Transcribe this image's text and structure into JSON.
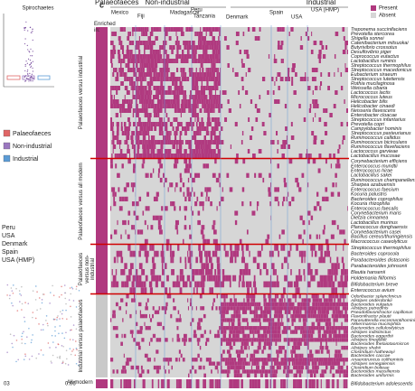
{
  "panel_b": {
    "title": "Spirochaetes",
    "legend": [
      "Palaeofaeces",
      "Non-industrial",
      "Industrial"
    ],
    "countries": [
      "Peru",
      "USA",
      "Denmark",
      "Spain",
      "USA (HMP)"
    ],
    "x_tick_labels": [
      "03",
      "0.06"
    ]
  },
  "panel_c": {
    "label": "c",
    "headers": [
      "Palaeofaeces",
      "Non-industrial",
      "Industrial"
    ],
    "countries": [
      "Mexico",
      "Fiji",
      "Madagascar",
      "Peru",
      "Tanzania",
      "Denmark",
      "Spain",
      "USA",
      "USA (HMP)"
    ],
    "enriched_label": "Enriched in:",
    "legend": [
      "Present",
      "Absent"
    ],
    "groups": [
      {
        "name": "Palaeofaeces versus industrial",
        "species": [
          "Treponema succinifaciens",
          "Prevotella stercorea",
          "Shigella sonnei",
          "Catenibacterium mitsuokai",
          "Butyrivibrio crossotus",
          "Desulfovibrio piger",
          "Coprococcus eutactus",
          "Lactobacillus ruminis",
          "Streptococcus thermophilus",
          "Streptococcus macedonicus",
          "Eubacterium siraeum",
          "Streptococcus lutetiensis",
          "Rothia mucilaginosa",
          "Weissella cibaria",
          "Lactococcus lactis",
          "Micrococcus luteus",
          "Helicobacter bilis",
          "Helicobacter cinaedi",
          "Neisseria flavescens",
          "Enterobacter cloacae",
          "Streptococcus infantarius",
          "Prevotella copri",
          "Campylobacter hominis",
          "Streptococcus pasteurianus",
          "Ruminococcus callidus",
          "Ruminococcus bicirculans",
          "Ruminococcus flavefaciens",
          "Lactococcus garvieae",
          "Lactobacillus mucosae"
        ]
      },
      {
        "name": "Palaeofaeces versus all modern",
        "species": [
          "Corynebacterium efficiens",
          "Enterococcus mundtii",
          "Enterococcus hirae",
          "Lactobacillus sakei",
          "Ruminococcus champanellensis",
          "Sharpea azabuensis",
          "Enterococcus faecium",
          "Kocuria palustris",
          "Bacteroides coprophilus",
          "Kocuria rhizophila",
          "Enterococcus faecalis",
          "Corynebacterium maris",
          "Dietzia cinnamea",
          "Lactobacillus murinus",
          "Planococcus donghaensis",
          "Corynebacterium casei",
          "Bacillus cereus/thuringiensis",
          "Macrococcus caseolyticus"
        ]
      },
      {
        "name": "Palaeofaeces versus non-industrial",
        "species": [
          "Streptococcus thermophilus",
          "Bacteroides coprocola",
          "Parabacteroides distasonis",
          "Parabacteroides johnsonii",
          "Blautia hansenii",
          "Holdemania filiformis",
          "Bifidobacterium breve",
          "Enterococcus avium"
        ]
      },
      {
        "name": "Industrial versus palaeofaeces",
        "species": [
          "Odoribacter splanchnicus",
          "Alistipes onderdonkii",
          "Bacteroides vulgatus",
          "Alistipes putredinis",
          "Pseudoflavonifractor capillosus",
          "Flavonifractor plautii",
          "Parasutterella excrementihominis",
          "Akkermansia muciniphila",
          "Bacteroides cellulosilyticus",
          "Alistipes indistinctus",
          "Bacteroides eggerthii",
          "Alistipes finegoldii",
          "Bacteroides thetaiotaomicron",
          "Alistipes shahii",
          "Clostridium hathewayi",
          "Bacteroides caccae",
          "Anaerotruncus colihominis",
          "Alistipes senegalensis",
          "Clostridium bolteae",
          "Bacteroides massiliensis",
          "Bacteroides uniformis"
        ]
      },
      {
        "name": "All modern",
        "species": [
          "Bifidobacterium adolescentis"
        ]
      }
    ]
  }
}
